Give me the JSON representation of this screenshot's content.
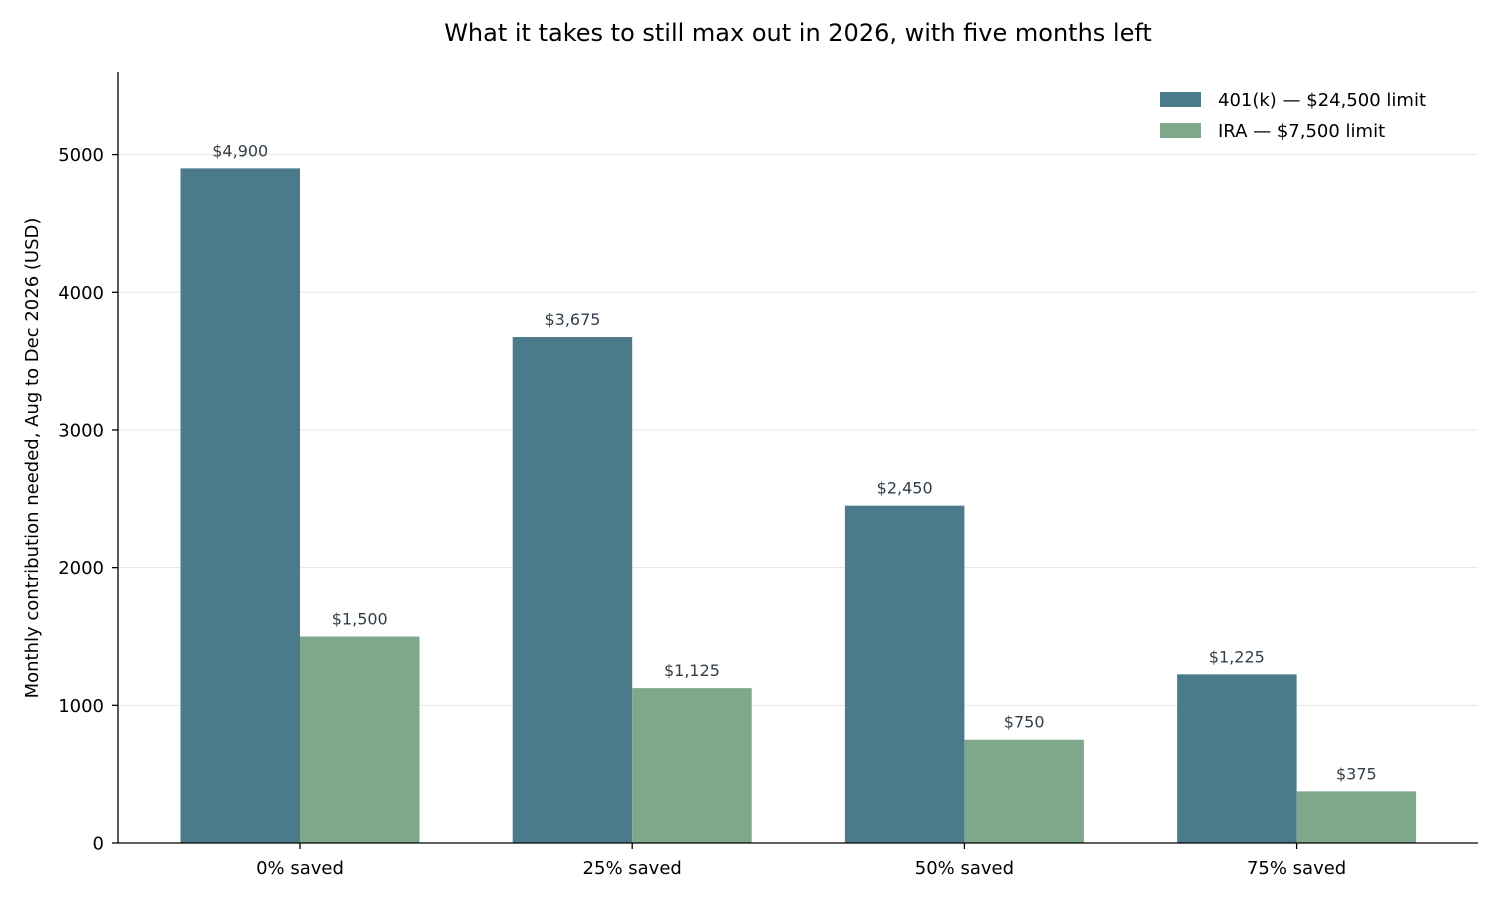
{
  "chart_data": {
    "type": "bar",
    "title": "What it takes to still max out in 2026, with five months left",
    "xlabel": "",
    "ylabel": "Monthly contribution needed, Aug to Dec 2026 (USD)",
    "categories": [
      "0% saved",
      "25% saved",
      "50% saved",
      "75% saved"
    ],
    "series": [
      {
        "name": "401(k) — $24,500 limit",
        "color": "#4b7b8a",
        "values": [
          4900,
          3675,
          2450,
          1225
        ],
        "labels": [
          "$4,900",
          "$3,675",
          "$2,450",
          "$1,225"
        ]
      },
      {
        "name": "IRA — $7,500 limit",
        "color": "#7fa88a",
        "values": [
          1500,
          1125,
          750,
          375
        ],
        "labels": [
          "$1,500",
          "$1,125",
          "$750",
          "$375"
        ]
      }
    ],
    "ylim": [
      0,
      5600
    ],
    "yticks": [
      0,
      1000,
      2000,
      3000,
      4000,
      5000
    ],
    "grid": "horizontal",
    "legend": "top-right"
  }
}
